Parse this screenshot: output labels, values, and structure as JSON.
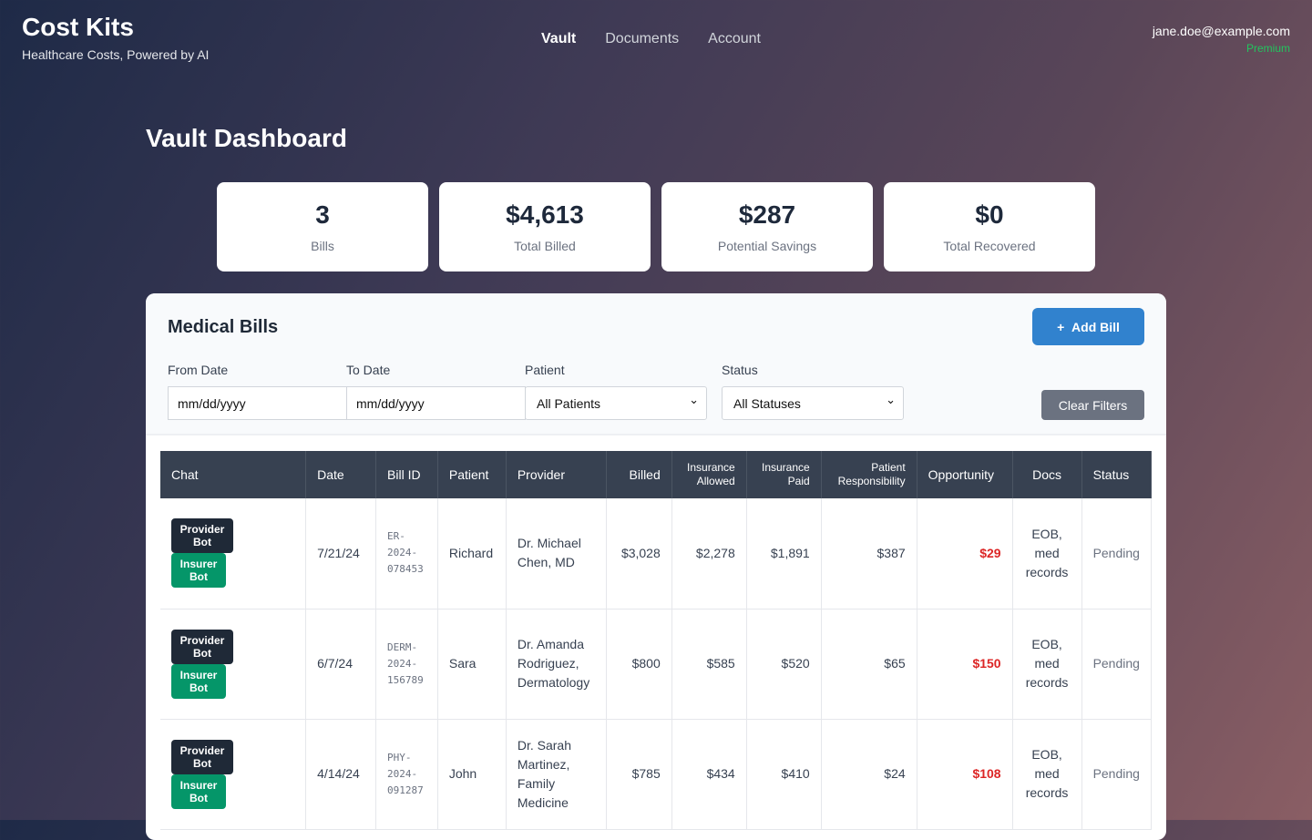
{
  "brand": {
    "name": "Cost Kits",
    "tagline": "Healthcare Costs, Powered by AI"
  },
  "nav": [
    "Vault",
    "Documents",
    "Account"
  ],
  "user": {
    "email": "jane.doe@example.com",
    "tier": "Premium"
  },
  "page_title": "Vault Dashboard",
  "stats": [
    {
      "value": "3",
      "label": "Bills"
    },
    {
      "value": "$4,613",
      "label": "Total Billed"
    },
    {
      "value": "$287",
      "label": "Potential Savings"
    },
    {
      "value": "$0",
      "label": "Total Recovered"
    }
  ],
  "bills": {
    "title": "Medical Bills",
    "add_label": "Add Bill",
    "filters": {
      "from_label": "From Date",
      "from_placeholder": "mm/dd/yyyy",
      "to_label": "To Date",
      "to_placeholder": "mm/dd/yyyy",
      "patient_label": "Patient",
      "patient_value": "All Patients",
      "status_label": "Status",
      "status_value": "All Statuses",
      "clear_label": "Clear Filters"
    },
    "columns": [
      "Chat",
      "Date",
      "Bill ID",
      "Patient",
      "Provider",
      "Billed",
      "Insurance Allowed",
      "Insurance Paid",
      "Patient Responsibility",
      "Opportunity",
      "Docs",
      "Status"
    ],
    "provider_bot": "Provider Bot",
    "insurer_bot": "Insurer Bot",
    "rows": [
      {
        "date": "7/21/24",
        "id": "ER-2024-078453",
        "patient": "Richard",
        "provider": "Dr. Michael Chen, MD",
        "billed": "$3,028",
        "allowed": "$2,278",
        "paid": "$1,891",
        "resp": "$387",
        "opp": "$29",
        "docs": "EOB, med records",
        "status": "Pending"
      },
      {
        "date": "6/7/24",
        "id": "DERM-2024-156789",
        "patient": "Sara",
        "provider": "Dr. Amanda Rodriguez, Dermatology",
        "billed": "$800",
        "allowed": "$585",
        "paid": "$520",
        "resp": "$65",
        "opp": "$150",
        "docs": "EOB, med records",
        "status": "Pending"
      },
      {
        "date": "4/14/24",
        "id": "PHY-2024-091287",
        "patient": "John",
        "provider": "Dr. Sarah Martinez, Family Medicine",
        "billed": "$785",
        "allowed": "$434",
        "paid": "$410",
        "resp": "$24",
        "opp": "$108",
        "docs": "EOB, med records",
        "status": "Pending"
      }
    ]
  },
  "colors": {
    "accent": "#3182ce",
    "opportunity": "#dc2626",
    "premium": "#22c55e",
    "insurer_bot": "#059669"
  }
}
